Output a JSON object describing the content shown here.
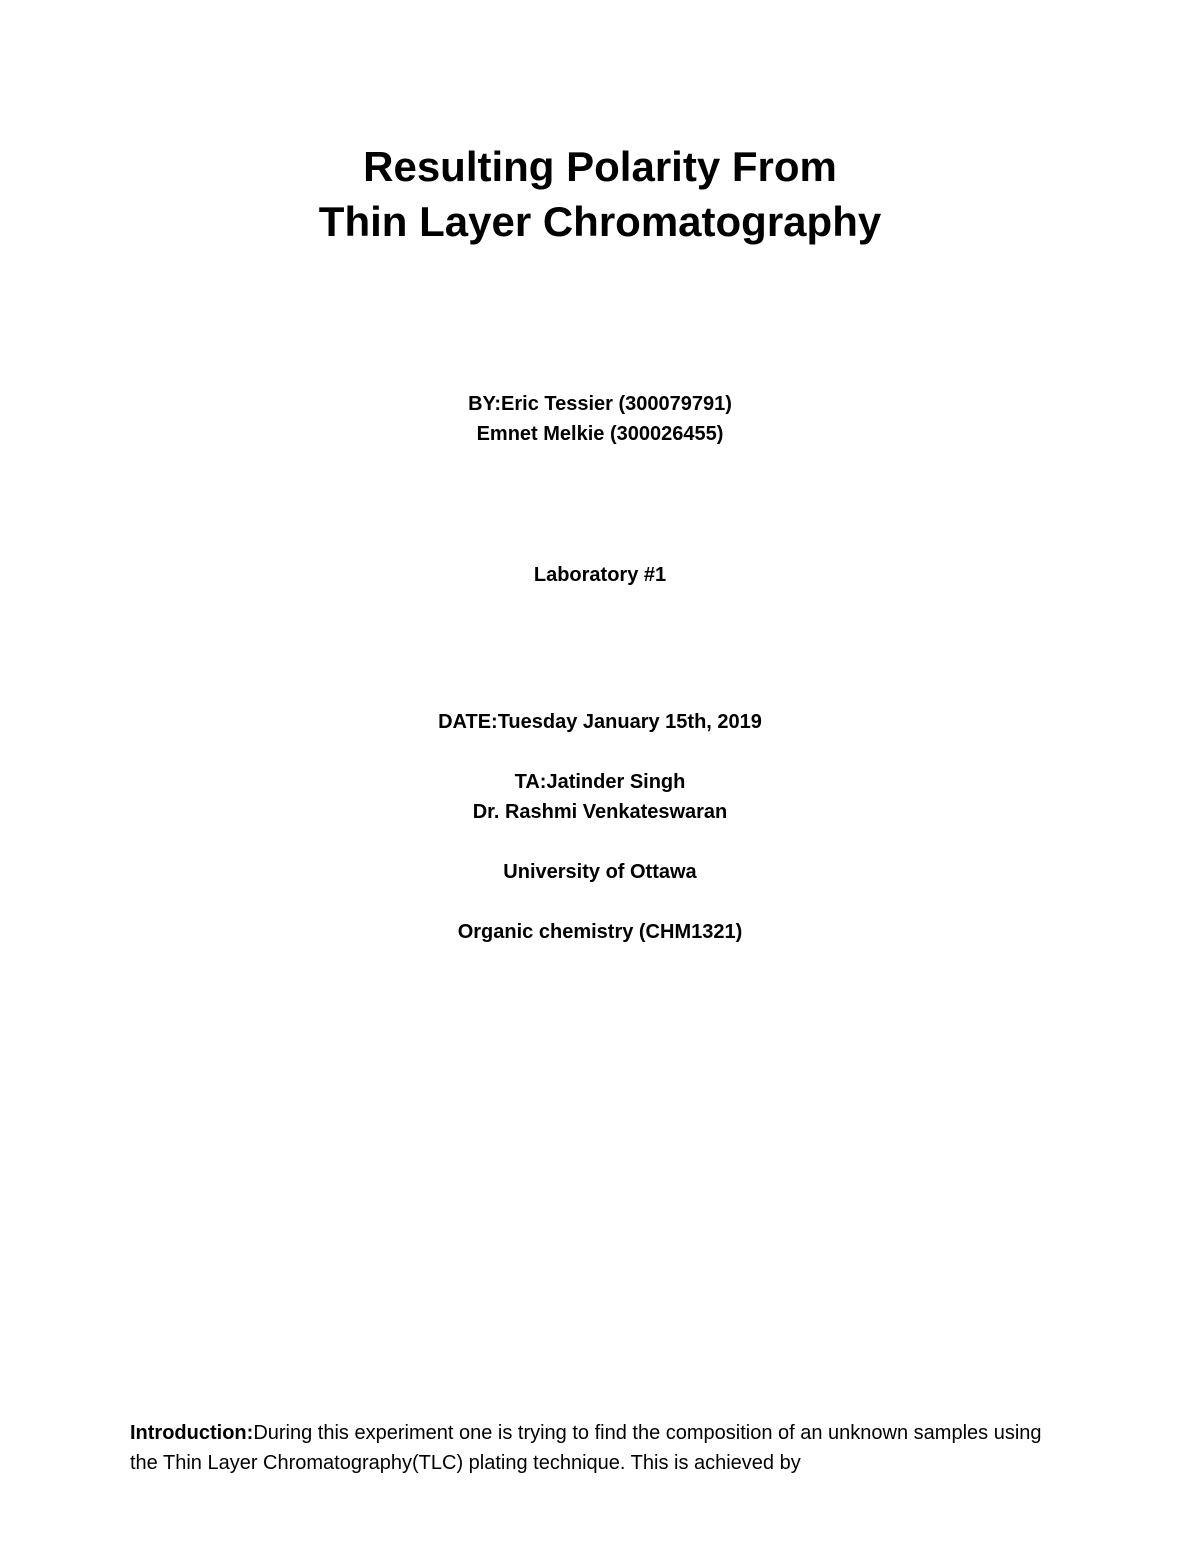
{
  "title": {
    "line1": "Resulting Polarity From",
    "line2": "Thin Layer Chromatography"
  },
  "authors": {
    "line1": "BY:Eric Tessier (300079791)",
    "line2": "Emnet Melkie (300026455)"
  },
  "lab": "Laboratory #1",
  "info": {
    "date": "DATE:Tuesday January 15th, 2019",
    "ta": "TA:Jatinder Singh",
    "professor": "Dr. Rashmi Venkateswaran",
    "university": "University of Ottawa",
    "course": "Organic chemistry (CHM1321)"
  },
  "intro": {
    "label": "Introduction:",
    "text": "During this experiment one is trying to find the composition of an unknown samples using the Thin Layer Chromatography(TLC) plating technique.  This is achieved by"
  },
  "styling": {
    "background_color": "#ffffff",
    "text_color": "#000000",
    "title_fontsize": 42,
    "body_fontsize": 20,
    "font_family": "Arial"
  }
}
